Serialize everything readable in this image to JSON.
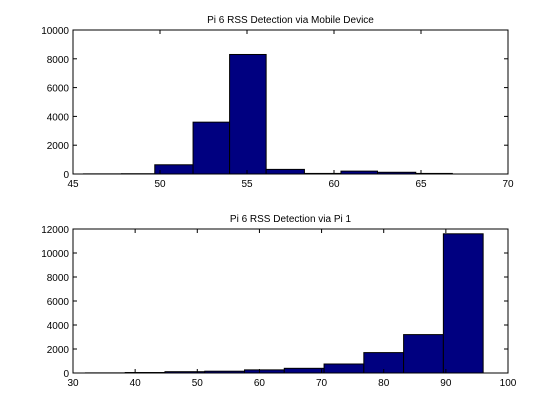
{
  "chart_data": [
    {
      "type": "bar",
      "title": "Pi 6 RSS Detection via Mobile Device",
      "xlabel": "",
      "ylabel": "",
      "xlim": [
        45,
        70
      ],
      "ylim": [
        0,
        10000
      ],
      "x_ticks": [
        45,
        50,
        55,
        60,
        65,
        70
      ],
      "y_ticks": [
        0,
        2000,
        4000,
        6000,
        8000,
        10000
      ],
      "bin_edges": [
        45.6,
        47.8,
        49.7,
        51.9,
        54.0,
        56.1,
        58.3,
        60.4,
        62.5,
        64.7,
        66.8
      ],
      "values": [
        10,
        20,
        640,
        3600,
        8300,
        320,
        40,
        200,
        120,
        40
      ],
      "bar_color": "#000080",
      "grid": false
    },
    {
      "type": "bar",
      "title": "Pi 6 RSS Detection via Pi 1",
      "xlabel": "",
      "ylabel": "",
      "xlim": [
        30,
        100
      ],
      "ylim": [
        0,
        12000
      ],
      "x_ticks": [
        30,
        40,
        50,
        60,
        70,
        80,
        90,
        100
      ],
      "y_ticks": [
        0,
        2000,
        4000,
        6000,
        8000,
        10000,
        12000
      ],
      "bin_edges": [
        32.0,
        38.4,
        44.8,
        51.2,
        57.6,
        64.0,
        70.4,
        76.8,
        83.2,
        89.6,
        96.0
      ],
      "values": [
        10,
        40,
        110,
        150,
        260,
        390,
        750,
        1700,
        3200,
        11600
      ],
      "bar_color": "#000080",
      "grid": false
    }
  ]
}
